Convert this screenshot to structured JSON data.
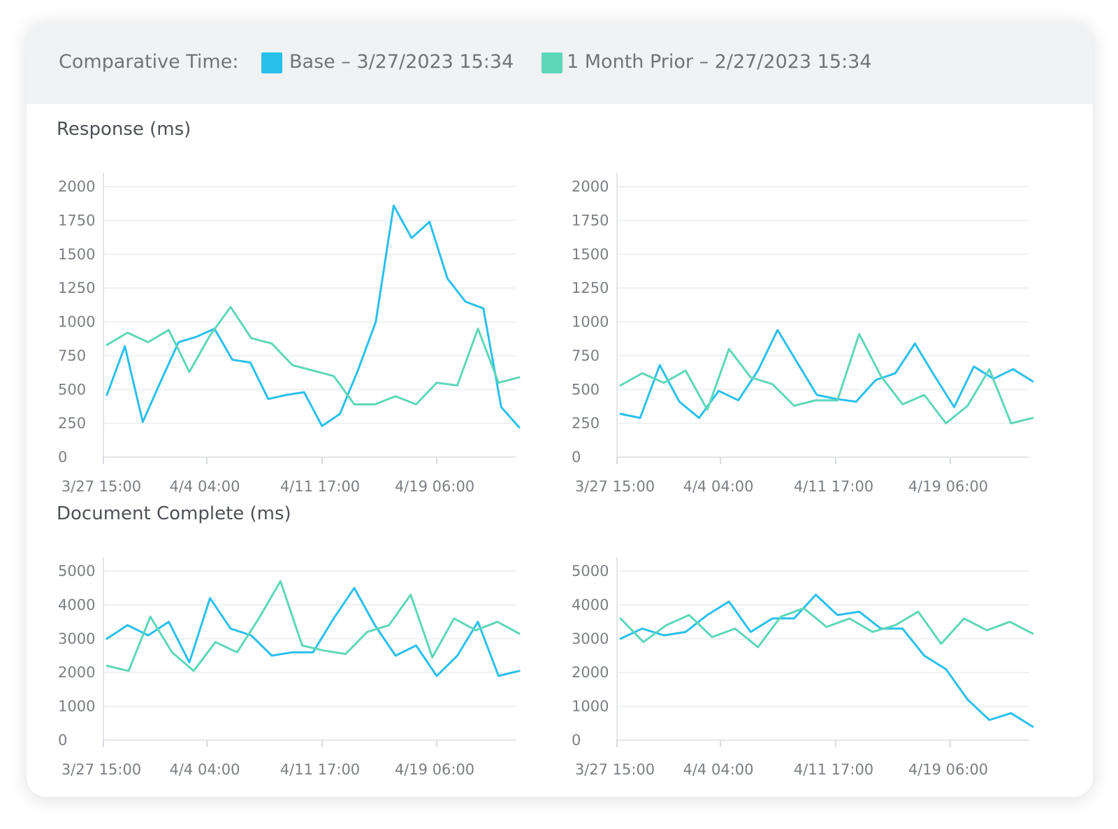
{
  "legend": {
    "label": "Comparative Time:",
    "items": [
      {
        "name": "Base – 3/27/2023 15:34",
        "color": "#29c0ec"
      },
      {
        "name": "1 Month Prior – 2/27/2023 15:34",
        "color": "#5ed7b9"
      }
    ]
  },
  "sections": [
    {
      "title": "Response (ms)"
    },
    {
      "title": "Document Complete (ms)"
    }
  ],
  "chart_data": [
    {
      "type": "line",
      "title": "",
      "ylim": [
        0,
        2000
      ],
      "yticks": [
        0,
        250,
        500,
        750,
        1000,
        1250,
        1500,
        1750,
        2000
      ],
      "xticks": [
        "3/27 15:00",
        "4/4 04:00",
        "4/11 17:00",
        "4/19 06:00"
      ],
      "grid": true,
      "series": [
        {
          "name": "Base – 3/27/2023 15:34",
          "color": "#29c0ec",
          "values": [
            460,
            820,
            260,
            560,
            850,
            890,
            950,
            720,
            700,
            430,
            460,
            480,
            230,
            320,
            640,
            1000,
            1860,
            1620,
            1740,
            1320,
            1150,
            1100,
            370,
            220
          ]
        },
        {
          "name": "1 Month Prior – 2/27/2023 15:34",
          "color": "#5ed7b9",
          "values": [
            830,
            920,
            850,
            940,
            630,
            900,
            1110,
            880,
            840,
            680,
            640,
            600,
            390,
            390,
            450,
            390,
            550,
            530,
            950,
            550,
            590
          ]
        }
      ]
    },
    {
      "type": "line",
      "title": "",
      "ylim": [
        0,
        2000
      ],
      "yticks": [
        0,
        250,
        500,
        750,
        1000,
        1250,
        1500,
        1750,
        2000
      ],
      "xticks": [
        "3/27 15:00",
        "4/4 04:00",
        "4/11 17:00",
        "4/19 06:00"
      ],
      "grid": true,
      "series": [
        {
          "name": "Base – 3/27/2023 15:34",
          "color": "#29c0ec",
          "values": [
            320,
            290,
            680,
            410,
            290,
            490,
            420,
            640,
            940,
            700,
            460,
            430,
            410,
            570,
            620,
            840,
            600,
            370,
            670,
            580,
            650,
            560
          ]
        },
        {
          "name": "1 Month Prior – 2/27/2023 15:34",
          "color": "#5ed7b9",
          "values": [
            530,
            620,
            550,
            640,
            350,
            800,
            590,
            540,
            380,
            420,
            420,
            910,
            600,
            390,
            460,
            250,
            380,
            650,
            250,
            290
          ]
        }
      ]
    },
    {
      "type": "line",
      "title": "",
      "ylim": [
        0,
        5000
      ],
      "yticks": [
        0,
        1000,
        2000,
        3000,
        4000,
        5000
      ],
      "xticks": [
        "3/27 15:00",
        "4/4 04:00",
        "4/11 17:00",
        "4/19 06:00"
      ],
      "grid": true,
      "series": [
        {
          "name": "Base – 3/27/2023 15:34",
          "color": "#29c0ec",
          "values": [
            3000,
            3400,
            3100,
            3500,
            2300,
            4200,
            3300,
            3100,
            2500,
            2600,
            2600,
            3600,
            4500,
            3400,
            2500,
            2800,
            1900,
            2500,
            3500,
            1900,
            2050
          ]
        },
        {
          "name": "1 Month Prior – 2/27/2023 15:34",
          "color": "#5ed7b9",
          "values": [
            2200,
            2050,
            3650,
            2600,
            2050,
            2900,
            2600,
            3600,
            4700,
            2800,
            2650,
            2550,
            3200,
            3400,
            4300,
            2450,
            3600,
            3250,
            3500,
            3150
          ]
        }
      ]
    },
    {
      "type": "line",
      "title": "",
      "ylim": [
        0,
        5000
      ],
      "yticks": [
        0,
        1000,
        2000,
        3000,
        4000,
        5000
      ],
      "xticks": [
        "3/27 15:00",
        "4/4 04:00",
        "4/11 17:00",
        "4/19 06:00"
      ],
      "grid": true,
      "series": [
        {
          "name": "Base – 3/27/2023 15:34",
          "color": "#29c0ec",
          "values": [
            3000,
            3300,
            3100,
            3200,
            3700,
            4100,
            3200,
            3600,
            3600,
            4300,
            3700,
            3800,
            3300,
            3300,
            2500,
            2100,
            1200,
            600,
            800,
            400
          ]
        },
        {
          "name": "1 Month Prior – 2/27/2023 15:34",
          "color": "#5ed7b9",
          "values": [
            3600,
            2900,
            3400,
            3700,
            3050,
            3300,
            2750,
            3650,
            3900,
            3350,
            3600,
            3200,
            3400,
            3800,
            2850,
            3600,
            3250,
            3500,
            3150
          ]
        }
      ]
    }
  ]
}
